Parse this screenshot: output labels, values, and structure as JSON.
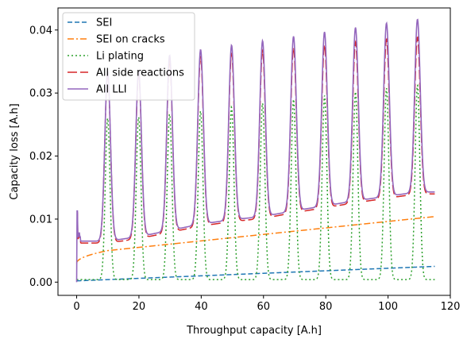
{
  "chart_data": {
    "type": "line",
    "title": "",
    "xlabel": "Throughput capacity [A.h]",
    "ylabel": "Capacity loss [A.h]",
    "xlim": [
      -6,
      120
    ],
    "ylim": [
      -0.0021,
      0.0435
    ],
    "xticks": [
      0,
      20,
      40,
      60,
      80,
      100,
      120
    ],
    "yticks": [
      0.0,
      0.01,
      0.02,
      0.03,
      0.04
    ],
    "ytick_labels": [
      "0.00",
      "0.01",
      "0.02",
      "0.03",
      "0.04"
    ],
    "legend_position": "upper-left",
    "grid": false,
    "generator": {
      "x_max": 115,
      "cycle_period": 9.95,
      "peak_positions": [
        9.95,
        19.9,
        29.85,
        39.8,
        49.75,
        59.7,
        69.65,
        79.6,
        89.55,
        99.5,
        109.45
      ],
      "peak_lli": [
        0.0335,
        0.0335,
        0.036,
        0.0369,
        0.0376,
        0.0383,
        0.039,
        0.0397,
        0.0404,
        0.0411,
        0.0417
      ],
      "peak_plating": [
        0.026,
        0.0262,
        0.0267,
        0.0272,
        0.0278,
        0.0284,
        0.029,
        0.0296,
        0.0302,
        0.0308,
        0.0313
      ],
      "trough_lli": [
        0.0065,
        0.0072,
        0.0082,
        0.0092,
        0.0099,
        0.0104,
        0.0113,
        0.0121,
        0.0129,
        0.0136,
        0.0143
      ],
      "sei": {
        "start": 0.0002,
        "end": 0.0025
      },
      "sei_cracks": {
        "start": 0.003,
        "knee": 0.005,
        "knee_x": 10,
        "end": 0.0104
      }
    },
    "series": [
      {
        "name": "SEI",
        "color": "#1f77b4",
        "dash": "6,3"
      },
      {
        "name": "SEI on cracks",
        "color": "#ff7f0e",
        "dash": "8,3,2,3"
      },
      {
        "name": "Li plating",
        "color": "#2ca02c",
        "dash": "2,3"
      },
      {
        "name": "All side reactions",
        "color": "#d62728",
        "dash": "12,4"
      },
      {
        "name": "All LLI",
        "color": "#9467bd",
        "dash": ""
      }
    ]
  }
}
